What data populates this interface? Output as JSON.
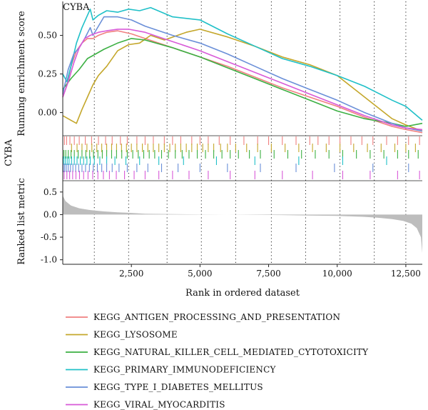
{
  "chart_data": {
    "type": "line",
    "title": "CYBA",
    "side_label": "CYBA",
    "xlabel": "Rank in ordered dataset",
    "xlim": [
      0,
      13100
    ],
    "x_ticks": [
      2500,
      5000,
      7500,
      10000,
      12500
    ],
    "x_tick_labels": [
      "2,500",
      "5,000",
      "7,500",
      "10,000",
      "12,500"
    ],
    "vlines": [
      1150,
      2400,
      3800,
      5050,
      6300,
      7600,
      8850,
      10100,
      11350,
      12500
    ],
    "panels": {
      "running_score": {
        "ylabel": "Running enrichment score",
        "ylim": [
          -0.15,
          0.72
        ],
        "y_ticks": [
          0.0,
          0.25,
          0.5
        ],
        "y_tick_labels": [
          "0.00",
          "0.25",
          "0.50"
        ]
      },
      "hits": {
        "label": "CYBA"
      },
      "ranked_metric": {
        "ylabel": "Ranked list metric",
        "ylim": [
          -1.1,
          0.75
        ],
        "y_ticks": [
          0.5,
          0.0,
          -0.5,
          -1.0
        ],
        "y_tick_labels": [
          "0.5",
          "0.0",
          "-0.5",
          "-1.0"
        ],
        "fill_color": "#bdbdbd",
        "x": [
          0,
          100,
          300,
          600,
          1000,
          1500,
          2000,
          2400,
          3000,
          4000,
          5000,
          6000,
          7000,
          8000,
          9000,
          10000,
          11000,
          11500,
          12000,
          12400,
          12700,
          12900,
          13050,
          13100
        ],
        "values": [
          0.42,
          0.3,
          0.2,
          0.14,
          0.1,
          0.07,
          0.05,
          0.04,
          0.02,
          0.01,
          0.005,
          0.0,
          -0.005,
          -0.01,
          -0.02,
          -0.03,
          -0.05,
          -0.07,
          -0.1,
          -0.14,
          -0.2,
          -0.3,
          -0.5,
          -0.85
        ]
      }
    },
    "series": [
      {
        "name": "KEGG_ANTIGEN_PROCESSING_AND_PRESENTATION",
        "color": "#f08080",
        "x": [
          0,
          150,
          300,
          500,
          700,
          900,
          1100,
          1300,
          1600,
          2000,
          2500,
          3000,
          4000,
          5000,
          6000,
          7000,
          8000,
          9000,
          10000,
          11000,
          12000,
          12500,
          13100
        ],
        "values": [
          0.1,
          0.18,
          0.3,
          0.4,
          0.45,
          0.48,
          0.48,
          0.5,
          0.52,
          0.53,
          0.51,
          0.48,
          0.42,
          0.36,
          0.3,
          0.23,
          0.16,
          0.1,
          0.04,
          -0.03,
          -0.09,
          -0.11,
          -0.13
        ]
      },
      {
        "name": "KEGG_LYSOSOME",
        "color": "#c4a72b",
        "x": [
          0,
          300,
          500,
          700,
          900,
          1100,
          1300,
          1600,
          2000,
          2400,
          2800,
          3200,
          3700,
          4500,
          5000,
          6000,
          7000,
          8000,
          9000,
          10000,
          11000,
          12000,
          12500,
          13100
        ],
        "values": [
          -0.02,
          -0.05,
          -0.07,
          0.02,
          0.1,
          0.18,
          0.24,
          0.3,
          0.4,
          0.44,
          0.45,
          0.5,
          0.47,
          0.52,
          0.54,
          0.49,
          0.43,
          0.36,
          0.31,
          0.24,
          0.1,
          -0.04,
          -0.08,
          -0.12
        ]
      },
      {
        "name": "KEGG_NATURAL_KILLER_CELL_MEDIATED_CYTOTOXICITY",
        "color": "#3cb043",
        "x": [
          0,
          300,
          600,
          900,
          1200,
          1500,
          2000,
          2500,
          3000,
          4000,
          5000,
          6000,
          7000,
          8000,
          9000,
          10000,
          11000,
          12000,
          12500,
          13100
        ],
        "values": [
          0.15,
          0.22,
          0.28,
          0.35,
          0.38,
          0.41,
          0.45,
          0.48,
          0.47,
          0.42,
          0.36,
          0.29,
          0.22,
          0.15,
          0.08,
          0.01,
          -0.04,
          -0.07,
          -0.09,
          -0.07
        ]
      },
      {
        "name": "KEGG_PRIMARY_IMMUNODEFICIENCY",
        "color": "#20c0c8",
        "x": [
          0,
          150,
          300,
          500,
          700,
          900,
          1000,
          1100,
          1300,
          1600,
          2000,
          2400,
          2800,
          3200,
          4000,
          5000,
          6000,
          7000,
          8000,
          9000,
          10000,
          11000,
          12000,
          12500,
          13100
        ],
        "values": [
          0.25,
          0.2,
          0.3,
          0.45,
          0.55,
          0.63,
          0.67,
          0.6,
          0.63,
          0.66,
          0.65,
          0.67,
          0.66,
          0.68,
          0.62,
          0.6,
          0.51,
          0.43,
          0.35,
          0.3,
          0.24,
          0.17,
          0.08,
          0.04,
          -0.05
        ]
      },
      {
        "name": "KEGG_TYPE_I_DIABETES_MELLITUS",
        "color": "#6a8fd8",
        "x": [
          0,
          200,
          400,
          600,
          800,
          1000,
          1100,
          1300,
          1500,
          2000,
          2500,
          3000,
          4000,
          5000,
          6000,
          7000,
          8000,
          9000,
          10000,
          11000,
          12000,
          12500,
          13100
        ],
        "values": [
          0.12,
          0.28,
          0.38,
          0.42,
          0.48,
          0.55,
          0.5,
          0.56,
          0.62,
          0.62,
          0.6,
          0.56,
          0.5,
          0.45,
          0.38,
          0.3,
          0.22,
          0.15,
          0.08,
          0.0,
          -0.07,
          -0.1,
          -0.12
        ]
      },
      {
        "name": "KEGG_VIRAL_MYOCARDITIS",
        "color": "#d85ad8",
        "x": [
          0,
          200,
          400,
          600,
          800,
          1000,
          1300,
          1600,
          2000,
          2400,
          3000,
          4000,
          5000,
          6000,
          7000,
          8000,
          9000,
          10000,
          11000,
          12000,
          12500,
          13100
        ],
        "values": [
          0.1,
          0.2,
          0.32,
          0.42,
          0.48,
          0.5,
          0.52,
          0.53,
          0.54,
          0.54,
          0.52,
          0.46,
          0.4,
          0.33,
          0.26,
          0.19,
          0.12,
          0.05,
          -0.02,
          -0.08,
          -0.1,
          -0.11
        ]
      }
    ],
    "hit_positions": [
      [
        60,
        140,
        260,
        420,
        600,
        820,
        1050,
        1300,
        1560,
        1800,
        2100,
        2350,
        2700,
        3000,
        3300,
        3700,
        4000,
        4300,
        4700,
        5000,
        5300,
        5700,
        6100,
        6600,
        7100,
        7500,
        8000,
        8500,
        9000,
        9300,
        9700,
        10100,
        10500,
        10900,
        11300,
        11800,
        12200,
        12600,
        13000
      ],
      [
        320,
        520,
        700,
        880,
        1060,
        1240,
        1420,
        1600,
        1780,
        1960,
        2140,
        2320,
        2500,
        2700,
        2900,
        3100,
        3300,
        3500,
        3700,
        3900,
        4100,
        4300,
        4500,
        4700,
        4900,
        5100,
        5300,
        5500,
        5750,
        6000,
        6300,
        6700,
        7100,
        7600,
        8100,
        8600,
        9100,
        9600,
        10100,
        10600,
        11100,
        11600,
        12100,
        12500,
        12850
      ],
      [
        40,
        110,
        200,
        300,
        420,
        560,
        700,
        840,
        980,
        1120,
        1280,
        1440,
        1600,
        1780,
        1960,
        2150,
        2350,
        2550,
        2750,
        2950,
        3150,
        3350,
        3600,
        3850,
        4100,
        4350,
        4600,
        4900,
        5200,
        5500,
        5800,
        6100,
        6400,
        6800,
        7200,
        7700,
        8200,
        8700,
        9200,
        9700,
        10200,
        10700,
        11200,
        11700,
        12200,
        12600,
        12950
      ],
      [
        30,
        90,
        160,
        230,
        320,
        420,
        520,
        640,
        760,
        880,
        1000,
        1150,
        1350,
        1600,
        1900,
        2300,
        2800,
        3500,
        4400,
        5600,
        7000,
        8600,
        10200,
        11800
      ],
      [
        20,
        70,
        130,
        200,
        280,
        370,
        470,
        580,
        700,
        830,
        970,
        1110,
        1260,
        1420,
        1600,
        1800,
        2050,
        2350,
        2700,
        3100,
        3600,
        4200,
        5000,
        6000,
        7200,
        8500,
        9900,
        11300,
        12600
      ],
      [
        50,
        150,
        250,
        360,
        480,
        610,
        760,
        920,
        1090,
        1280,
        1480,
        1700,
        1950,
        2250,
        2600,
        3000,
        3500,
        4000,
        4600,
        5300,
        6100,
        7000,
        8000,
        9100,
        10200,
        11200,
        12200,
        13000
      ]
    ]
  }
}
